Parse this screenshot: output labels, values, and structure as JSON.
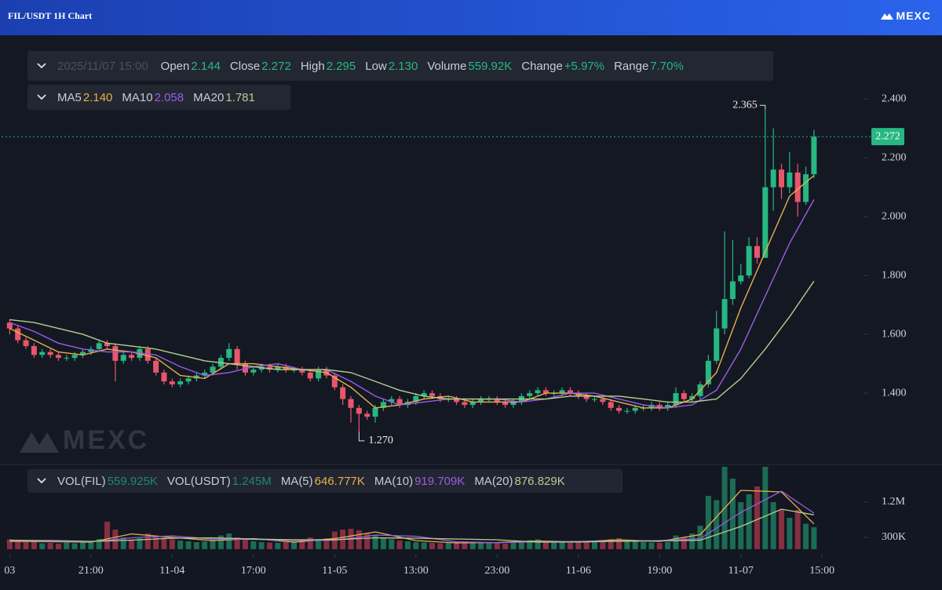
{
  "header": {
    "title": "FIL/USDT 1H Chart",
    "brand": "MEXC"
  },
  "chart_data": [
    {
      "type": "candlestick",
      "time": "2025/11/07 15:00",
      "info": [
        {
          "label": "Open",
          "text": "2.144"
        },
        {
          "label": "Close",
          "text": "2.272"
        },
        {
          "label": "High",
          "text": "2.295"
        },
        {
          "label": "Low",
          "text": "2.130"
        },
        {
          "label": "Volume",
          "text": "559.92K"
        },
        {
          "label": "Change",
          "text": "+5.97%"
        },
        {
          "label": "Range",
          "text": "7.70%"
        }
      ],
      "open": [
        1.64,
        1.62,
        1.58,
        1.56,
        1.53,
        1.54,
        1.53,
        1.52,
        1.52,
        1.53,
        1.54,
        1.55,
        1.57,
        1.56,
        1.51,
        1.53,
        1.52,
        1.55,
        1.51,
        1.47,
        1.44,
        1.43,
        1.44,
        1.45,
        1.46,
        1.47,
        1.49,
        1.52,
        1.55,
        1.5,
        1.47,
        1.48,
        1.49,
        1.48,
        1.49,
        1.48,
        1.48,
        1.47,
        1.45,
        1.48,
        1.46,
        1.42,
        1.38,
        1.35,
        1.33,
        1.32,
        1.35,
        1.37,
        1.38,
        1.36,
        1.37,
        1.39,
        1.4,
        1.39,
        1.38,
        1.38,
        1.37,
        1.36,
        1.37,
        1.38,
        1.38,
        1.37,
        1.36,
        1.37,
        1.39,
        1.4,
        1.41,
        1.4,
        1.4,
        1.41,
        1.4,
        1.39,
        1.38,
        1.38,
        1.37,
        1.35,
        1.34,
        1.34,
        1.35,
        1.35,
        1.36,
        1.35,
        1.36,
        1.4,
        1.38,
        1.39,
        1.43,
        1.51,
        1.62,
        1.72,
        1.78,
        1.8,
        1.9,
        1.86,
        2.1,
        2.16,
        2.1,
        2.15,
        2.05,
        2.144
      ],
      "high": [
        1.65,
        1.63,
        1.59,
        1.57,
        1.55,
        1.55,
        1.54,
        1.53,
        1.54,
        1.55,
        1.56,
        1.58,
        1.58,
        1.57,
        1.54,
        1.54,
        1.56,
        1.56,
        1.52,
        1.48,
        1.45,
        1.45,
        1.46,
        1.47,
        1.48,
        1.5,
        1.53,
        1.57,
        1.56,
        1.51,
        1.49,
        1.5,
        1.5,
        1.5,
        1.5,
        1.49,
        1.49,
        1.48,
        1.49,
        1.49,
        1.47,
        1.43,
        1.39,
        1.36,
        1.34,
        1.36,
        1.38,
        1.39,
        1.39,
        1.38,
        1.4,
        1.41,
        1.41,
        1.4,
        1.39,
        1.39,
        1.38,
        1.38,
        1.39,
        1.39,
        1.39,
        1.38,
        1.38,
        1.4,
        1.41,
        1.42,
        1.42,
        1.41,
        1.42,
        1.42,
        1.41,
        1.4,
        1.39,
        1.39,
        1.38,
        1.36,
        1.35,
        1.36,
        1.36,
        1.37,
        1.37,
        1.37,
        1.42,
        1.41,
        1.4,
        1.44,
        1.53,
        1.68,
        1.95,
        1.92,
        1.84,
        1.93,
        1.93,
        2.365,
        2.3,
        2.18,
        2.22,
        2.18,
        2.17,
        2.295
      ],
      "low": [
        1.6,
        1.57,
        1.55,
        1.52,
        1.52,
        1.52,
        1.51,
        1.51,
        1.51,
        1.52,
        1.53,
        1.54,
        1.55,
        1.44,
        1.5,
        1.51,
        1.51,
        1.5,
        1.46,
        1.43,
        1.42,
        1.42,
        1.43,
        1.44,
        1.45,
        1.46,
        1.48,
        1.51,
        1.48,
        1.46,
        1.46,
        1.47,
        1.47,
        1.47,
        1.47,
        1.47,
        1.46,
        1.44,
        1.44,
        1.45,
        1.41,
        1.36,
        1.3,
        1.27,
        1.31,
        1.3,
        1.34,
        1.36,
        1.35,
        1.35,
        1.36,
        1.38,
        1.38,
        1.37,
        1.37,
        1.36,
        1.35,
        1.35,
        1.36,
        1.37,
        1.36,
        1.35,
        1.35,
        1.36,
        1.38,
        1.39,
        1.39,
        1.39,
        1.39,
        1.39,
        1.38,
        1.37,
        1.37,
        1.36,
        1.34,
        1.33,
        1.33,
        1.33,
        1.34,
        1.34,
        1.34,
        1.34,
        1.35,
        1.37,
        1.37,
        1.38,
        1.42,
        1.5,
        1.6,
        1.7,
        1.77,
        1.79,
        1.84,
        1.86,
        2.02,
        2.06,
        2.08,
        2.0,
        2.04,
        2.13
      ],
      "close": [
        1.62,
        1.58,
        1.56,
        1.53,
        1.54,
        1.53,
        1.52,
        1.52,
        1.53,
        1.54,
        1.55,
        1.57,
        1.56,
        1.51,
        1.53,
        1.52,
        1.55,
        1.51,
        1.47,
        1.44,
        1.43,
        1.44,
        1.45,
        1.46,
        1.47,
        1.49,
        1.52,
        1.55,
        1.5,
        1.47,
        1.48,
        1.49,
        1.48,
        1.49,
        1.48,
        1.48,
        1.47,
        1.45,
        1.48,
        1.46,
        1.42,
        1.38,
        1.35,
        1.33,
        1.32,
        1.35,
        1.37,
        1.38,
        1.36,
        1.37,
        1.39,
        1.4,
        1.39,
        1.38,
        1.38,
        1.37,
        1.36,
        1.37,
        1.38,
        1.38,
        1.37,
        1.36,
        1.37,
        1.39,
        1.4,
        1.41,
        1.4,
        1.4,
        1.41,
        1.4,
        1.39,
        1.38,
        1.38,
        1.37,
        1.35,
        1.34,
        1.34,
        1.35,
        1.35,
        1.36,
        1.35,
        1.36,
        1.4,
        1.38,
        1.39,
        1.43,
        1.51,
        1.62,
        1.72,
        1.78,
        1.8,
        1.9,
        1.86,
        2.1,
        2.16,
        2.1,
        2.15,
        2.05,
        2.144,
        2.272
      ],
      "up_color": "#26b783",
      "down_color": "#e9566b",
      "series": [
        {
          "name": "MA5",
          "legend_value": "2.140",
          "color": "#e8b04b",
          "x": [
            0,
            3,
            6,
            9,
            12,
            15,
            18,
            21,
            24,
            27,
            30,
            33,
            36,
            39,
            42,
            45,
            48,
            51,
            54,
            57,
            60,
            63,
            66,
            69,
            72,
            75,
            78,
            81,
            84,
            87,
            90,
            93,
            96,
            99
          ],
          "values": [
            1.62,
            1.58,
            1.54,
            1.53,
            1.55,
            1.54,
            1.52,
            1.46,
            1.45,
            1.5,
            1.5,
            1.49,
            1.48,
            1.47,
            1.42,
            1.35,
            1.36,
            1.38,
            1.39,
            1.37,
            1.37,
            1.37,
            1.4,
            1.4,
            1.39,
            1.37,
            1.35,
            1.35,
            1.38,
            1.47,
            1.69,
            1.88,
            2.07,
            2.14
          ]
        },
        {
          "name": "MA10",
          "legend_value": "2.058",
          "color": "#9b5de5",
          "x": [
            0,
            3,
            6,
            9,
            12,
            15,
            18,
            21,
            24,
            27,
            30,
            33,
            36,
            39,
            42,
            45,
            48,
            51,
            54,
            57,
            60,
            63,
            66,
            69,
            72,
            75,
            78,
            81,
            84,
            87,
            90,
            93,
            96,
            99
          ],
          "values": [
            1.64,
            1.61,
            1.57,
            1.55,
            1.54,
            1.54,
            1.53,
            1.49,
            1.46,
            1.47,
            1.49,
            1.5,
            1.48,
            1.48,
            1.44,
            1.39,
            1.36,
            1.37,
            1.38,
            1.38,
            1.38,
            1.37,
            1.38,
            1.4,
            1.4,
            1.38,
            1.36,
            1.35,
            1.36,
            1.41,
            1.55,
            1.73,
            1.91,
            2.058
          ]
        },
        {
          "name": "MA20",
          "legend_value": "1.781",
          "color": "#b5cf8f",
          "x": [
            0,
            3,
            6,
            9,
            12,
            15,
            18,
            21,
            24,
            27,
            30,
            33,
            36,
            39,
            42,
            45,
            48,
            51,
            54,
            57,
            60,
            63,
            66,
            69,
            72,
            75,
            78,
            81,
            84,
            87,
            90,
            93,
            96,
            99
          ],
          "values": [
            1.65,
            1.64,
            1.62,
            1.6,
            1.57,
            1.56,
            1.55,
            1.53,
            1.51,
            1.5,
            1.49,
            1.48,
            1.48,
            1.48,
            1.47,
            1.44,
            1.41,
            1.39,
            1.38,
            1.38,
            1.38,
            1.38,
            1.38,
            1.39,
            1.39,
            1.39,
            1.38,
            1.37,
            1.37,
            1.38,
            1.45,
            1.55,
            1.66,
            1.781
          ]
        }
      ],
      "annotations": [
        {
          "label": "2.365",
          "x": 93,
          "y": 2.365
        },
        {
          "label": "1.270",
          "x": 43,
          "y": 1.27
        }
      ],
      "last_price": {
        "value": 2.272,
        "label": "2.272"
      },
      "watermark": "MEXC",
      "xlim": [
        -1,
        105
      ],
      "ylim": [
        1.163,
        2.603
      ],
      "yticks": [
        {
          "value": 1.4,
          "label": "1.400"
        },
        {
          "value": 1.6,
          "label": "1.600"
        },
        {
          "value": 1.8,
          "label": "1.800"
        },
        {
          "value": 2.0,
          "label": "2.000"
        },
        {
          "value": 2.2,
          "label": "2.200"
        },
        {
          "value": 2.4,
          "label": "2.400"
        }
      ],
      "grid": false
    },
    {
      "type": "bar",
      "legend": [
        {
          "name": "VOL(FIL)",
          "text": "559.925K"
        },
        {
          "name": "VOL(USDT)",
          "text": "1.245M"
        }
      ],
      "values": [
        250000,
        200000,
        180000,
        220000,
        150000,
        160000,
        140000,
        170000,
        150000,
        180000,
        200000,
        260000,
        700000,
        500000,
        300000,
        250000,
        280000,
        400000,
        350000,
        300000,
        250000,
        220000,
        200000,
        180000,
        200000,
        260000,
        350000,
        400000,
        300000,
        250000,
        200000,
        180000,
        170000,
        160000,
        180000,
        200000,
        250000,
        300000,
        260000,
        280000,
        450000,
        500000,
        520000,
        480000,
        400000,
        350000,
        300000,
        250000,
        220000,
        200000,
        180000,
        170000,
        160000,
        150000,
        170000,
        180000,
        200000,
        190000,
        170000,
        160000,
        150000,
        140000,
        160000,
        200000,
        230000,
        250000,
        200000,
        180000,
        170000,
        160000,
        170000,
        180000,
        200000,
        220000,
        260000,
        280000,
        240000,
        200000,
        180000,
        170000,
        160000,
        180000,
        350000,
        300000,
        400000,
        600000,
        1360000,
        1250000,
        2100000,
        1800000,
        1200000,
        1400000,
        1600000,
        2100000,
        1200000,
        1000000,
        800000,
        1000000,
        650000,
        559925
      ],
      "series": [
        {
          "name": "MA(5)",
          "legend_value": "646.777K",
          "color": "#e8b04b",
          "x": [
            0,
            5,
            10,
            15,
            20,
            25,
            30,
            35,
            40,
            45,
            50,
            55,
            60,
            65,
            70,
            75,
            80,
            85,
            90,
            95,
            99
          ],
          "values": [
            200000,
            190000,
            180000,
            390000,
            300000,
            220000,
            270000,
            180000,
            270000,
            440000,
            220000,
            160000,
            170000,
            210000,
            190000,
            240000,
            200000,
            370000,
            1500000,
            1460000,
            646777
          ]
        },
        {
          "name": "MA(10)",
          "legend_value": "919.709K",
          "color": "#9b5de5",
          "x": [
            0,
            5,
            10,
            15,
            20,
            25,
            30,
            35,
            40,
            45,
            50,
            55,
            60,
            65,
            70,
            75,
            80,
            85,
            90,
            95,
            99
          ],
          "values": [
            220000,
            200000,
            190000,
            290000,
            340000,
            260000,
            250000,
            220000,
            230000,
            360000,
            330000,
            190000,
            165000,
            190000,
            200000,
            210000,
            220000,
            270000,
            940000,
            1480000,
            919709
          ]
        },
        {
          "name": "MA(20)",
          "legend_value": "876.829K",
          "color": "#b5cf8f",
          "x": [
            0,
            5,
            10,
            15,
            20,
            25,
            30,
            35,
            40,
            45,
            50,
            55,
            60,
            65,
            70,
            75,
            80,
            85,
            90,
            95,
            99
          ],
          "values": [
            230000,
            220000,
            200000,
            230000,
            280000,
            290000,
            260000,
            240000,
            240000,
            290000,
            280000,
            260000,
            240000,
            180000,
            185000,
            205000,
            210000,
            230000,
            580000,
            1020000,
            876829
          ]
        }
      ],
      "xlim": [
        -1,
        105
      ],
      "ylim": [
        0,
        2100000
      ],
      "yticks": [
        {
          "value": 300000,
          "label": "300K"
        },
        {
          "value": 1200000,
          "label": "1.2M"
        }
      ],
      "xticks": [
        {
          "value": 0,
          "label": "03"
        },
        {
          "value": 10,
          "label": "21:00"
        },
        {
          "value": 20,
          "label": "11-04"
        },
        {
          "value": 30,
          "label": "17:00"
        },
        {
          "value": 40,
          "label": "11-05"
        },
        {
          "value": 50,
          "label": "13:00"
        },
        {
          "value": 60,
          "label": "23:00"
        },
        {
          "value": 70,
          "label": "11-06"
        },
        {
          "value": 80,
          "label": "19:00"
        },
        {
          "value": 90,
          "label": "11-07"
        },
        {
          "value": 100,
          "label": "15:00"
        }
      ]
    }
  ]
}
